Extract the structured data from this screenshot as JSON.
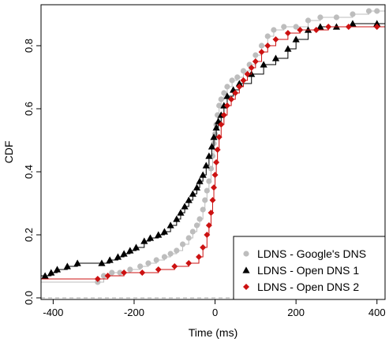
{
  "chart_data": {
    "type": "line",
    "title": "",
    "xlabel": "Time (ms)",
    "ylabel": "CDF",
    "xlim": [
      -430,
      420
    ],
    "ylim": [
      -0.005,
      0.93
    ],
    "xticks": [
      -400,
      -200,
      0,
      200,
      400
    ],
    "yticks": [
      0.0,
      0.2,
      0.4,
      0.6,
      0.8
    ],
    "xtick_labels": [
      "-400",
      "-200",
      "0",
      "200",
      "400"
    ],
    "ytick_labels": [
      "0.0",
      "0.2",
      "0.4",
      "0.6",
      "0.8"
    ],
    "reference_line": {
      "y": 0,
      "style": "dashed",
      "color": "#bbbbbb"
    },
    "legend": {
      "position": "bottom-right"
    },
    "series": [
      {
        "name": "LDNS - Google's DNS",
        "color": "#bdbdbd",
        "marker": "circle",
        "points": [
          [
            -290,
            0.05
          ],
          [
            -275,
            0.07
          ],
          [
            -255,
            0.08
          ],
          [
            -235,
            0.08
          ],
          [
            -210,
            0.09
          ],
          [
            -185,
            0.1
          ],
          [
            -165,
            0.11
          ],
          [
            -145,
            0.12
          ],
          [
            -125,
            0.13
          ],
          [
            -110,
            0.14
          ],
          [
            -95,
            0.15
          ],
          [
            -80,
            0.17
          ],
          [
            -65,
            0.19
          ],
          [
            -55,
            0.21
          ],
          [
            -45,
            0.23
          ],
          [
            -38,
            0.25
          ],
          [
            -30,
            0.28
          ],
          [
            -25,
            0.31
          ],
          [
            -20,
            0.34
          ],
          [
            -15,
            0.37
          ],
          [
            -10,
            0.41
          ],
          [
            -6,
            0.45
          ],
          [
            -3,
            0.49
          ],
          [
            0,
            0.52
          ],
          [
            3,
            0.55
          ],
          [
            6,
            0.58
          ],
          [
            10,
            0.61
          ],
          [
            15,
            0.63
          ],
          [
            22,
            0.65
          ],
          [
            30,
            0.67
          ],
          [
            42,
            0.69
          ],
          [
            55,
            0.7
          ],
          [
            70,
            0.72
          ],
          [
            85,
            0.74
          ],
          [
            100,
            0.77
          ],
          [
            115,
            0.8
          ],
          [
            130,
            0.83
          ],
          [
            145,
            0.85
          ],
          [
            170,
            0.86
          ],
          [
            200,
            0.86
          ],
          [
            230,
            0.88
          ],
          [
            260,
            0.89
          ],
          [
            300,
            0.89
          ],
          [
            340,
            0.9
          ],
          [
            380,
            0.91
          ],
          [
            400,
            0.91
          ]
        ]
      },
      {
        "name": "LDNS - Open DNS 1",
        "color": "#000000",
        "marker": "triangle",
        "points": [
          [
            -420,
            0.07
          ],
          [
            -405,
            0.08
          ],
          [
            -390,
            0.09
          ],
          [
            -365,
            0.1
          ],
          [
            -340,
            0.11
          ],
          [
            -280,
            0.11
          ],
          [
            -260,
            0.12
          ],
          [
            -240,
            0.13
          ],
          [
            -225,
            0.14
          ],
          [
            -210,
            0.15
          ],
          [
            -195,
            0.16
          ],
          [
            -175,
            0.18
          ],
          [
            -160,
            0.19
          ],
          [
            -140,
            0.2
          ],
          [
            -125,
            0.21
          ],
          [
            -110,
            0.23
          ],
          [
            -95,
            0.25
          ],
          [
            -85,
            0.27
          ],
          [
            -75,
            0.29
          ],
          [
            -65,
            0.31
          ],
          [
            -55,
            0.33
          ],
          [
            -45,
            0.35
          ],
          [
            -38,
            0.37
          ],
          [
            -30,
            0.39
          ],
          [
            -22,
            0.42
          ],
          [
            -15,
            0.45
          ],
          [
            -8,
            0.48
          ],
          [
            -3,
            0.51
          ],
          [
            3,
            0.54
          ],
          [
            8,
            0.56
          ],
          [
            15,
            0.58
          ],
          [
            22,
            0.61
          ],
          [
            30,
            0.64
          ],
          [
            45,
            0.66
          ],
          [
            60,
            0.68
          ],
          [
            90,
            0.71
          ],
          [
            120,
            0.74
          ],
          [
            150,
            0.76
          ],
          [
            180,
            0.79
          ],
          [
            200,
            0.82
          ],
          [
            230,
            0.85
          ],
          [
            260,
            0.86
          ],
          [
            300,
            0.86
          ],
          [
            340,
            0.87
          ],
          [
            400,
            0.87
          ]
        ]
      },
      {
        "name": "LDNS - Open DNS 2",
        "color": "#cc1111",
        "marker": "diamond",
        "points": [
          [
            -290,
            0.06
          ],
          [
            -265,
            0.07
          ],
          [
            -225,
            0.08
          ],
          [
            -180,
            0.08
          ],
          [
            -140,
            0.09
          ],
          [
            -100,
            0.1
          ],
          [
            -65,
            0.11
          ],
          [
            -40,
            0.13
          ],
          [
            -30,
            0.16
          ],
          [
            -20,
            0.2
          ],
          [
            -15,
            0.23
          ],
          [
            -10,
            0.27
          ],
          [
            -6,
            0.31
          ],
          [
            -3,
            0.35
          ],
          [
            0,
            0.39
          ],
          [
            3,
            0.43
          ],
          [
            6,
            0.47
          ],
          [
            10,
            0.51
          ],
          [
            15,
            0.55
          ],
          [
            22,
            0.58
          ],
          [
            30,
            0.61
          ],
          [
            40,
            0.63
          ],
          [
            50,
            0.65
          ],
          [
            60,
            0.67
          ],
          [
            70,
            0.69
          ],
          [
            80,
            0.71
          ],
          [
            90,
            0.73
          ],
          [
            100,
            0.75
          ],
          [
            115,
            0.78
          ],
          [
            130,
            0.8
          ],
          [
            150,
            0.82
          ],
          [
            180,
            0.84
          ],
          [
            210,
            0.85
          ],
          [
            250,
            0.85
          ],
          [
            280,
            0.86
          ],
          [
            330,
            0.86
          ],
          [
            400,
            0.86
          ]
        ]
      }
    ]
  }
}
